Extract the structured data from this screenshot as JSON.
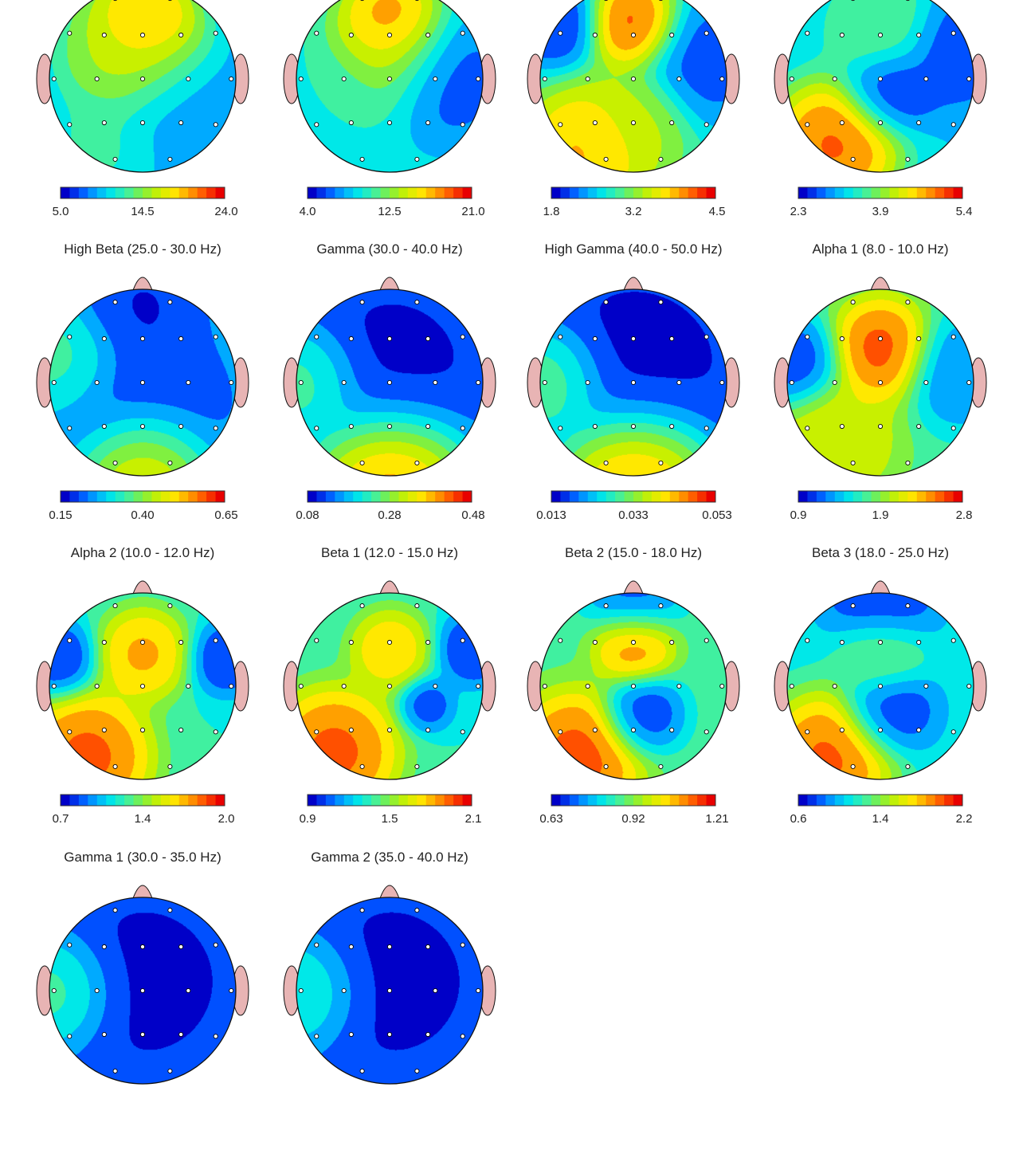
{
  "chart_data": {
    "type": "heatmap",
    "colors": {
      "scale": [
        "#0000c8",
        "#0050ff",
        "#00aaff",
        "#00e8e8",
        "#40f0a0",
        "#80f040",
        "#c8f000",
        "#ffe800",
        "#ffa000",
        "#ff5000",
        "#e80000"
      ],
      "head_outline": "#111111",
      "ear_fill": "#e8b4b4",
      "electrode": "#ffffff"
    },
    "maps": [
      {
        "title": "",
        "ticks": [
          "5.0",
          "14.5",
          "24.0"
        ],
        "blobs": [
          {
            "x": 0.0,
            "y": 0.62,
            "r": 0.28,
            "v": 0.95
          },
          {
            "x": 0.0,
            "y": 0.25,
            "r": 0.35,
            "v": 0.75
          },
          {
            "x": -0.25,
            "y": 0.3,
            "r": 0.35,
            "v": 0.55
          },
          {
            "x": 0.3,
            "y": -0.2,
            "r": 0.35,
            "v": 0.15
          },
          {
            "x": -0.45,
            "y": -0.7,
            "r": 0.3,
            "v": 0.4
          }
        ],
        "base": 0.2
      },
      {
        "title": "",
        "ticks": [
          "4.0",
          "12.5",
          "21.0"
        ],
        "blobs": [
          {
            "x": 0.0,
            "y": 0.62,
            "r": 0.26,
            "v": 0.95
          },
          {
            "x": 0.0,
            "y": 0.3,
            "r": 0.35,
            "v": 0.65
          },
          {
            "x": -0.6,
            "y": -0.3,
            "r": 0.35,
            "v": 0.35
          },
          {
            "x": 0.6,
            "y": 0.0,
            "r": 0.35,
            "v": 0.05
          }
        ],
        "base": 0.3
      },
      {
        "title": "",
        "ticks": [
          "1.8",
          "3.2",
          "4.5"
        ],
        "blobs": [
          {
            "x": 0.0,
            "y": 0.6,
            "r": 0.25,
            "v": 0.98
          },
          {
            "x": -0.5,
            "y": -0.75,
            "r": 0.35,
            "v": 0.85
          },
          {
            "x": 0.0,
            "y": -0.5,
            "r": 0.3,
            "v": 0.6
          },
          {
            "x": -0.85,
            "y": 0.6,
            "r": 0.25,
            "v": 0.0
          },
          {
            "x": 0.8,
            "y": 0.2,
            "r": 0.35,
            "v": 0.05
          }
        ],
        "base": 0.35
      },
      {
        "title": "",
        "ticks": [
          "2.3",
          "3.9",
          "5.4"
        ],
        "blobs": [
          {
            "x": -0.5,
            "y": -0.7,
            "r": 0.35,
            "v": 0.98
          },
          {
            "x": 0.1,
            "y": -0.1,
            "r": 0.25,
            "v": 0.0
          },
          {
            "x": 0.0,
            "y": 0.55,
            "r": 0.3,
            "v": 0.5
          },
          {
            "x": 0.8,
            "y": 0.3,
            "r": 0.3,
            "v": 0.05
          }
        ],
        "base": 0.25
      },
      {
        "title": "High Beta (25.0 - 30.0 Hz)",
        "ticks": [
          "0.15",
          "0.40",
          "0.65"
        ],
        "blobs": [
          {
            "x": 0.0,
            "y": -0.9,
            "r": 0.35,
            "v": 0.98
          },
          {
            "x": 0.0,
            "y": -0.3,
            "r": 0.55,
            "v": 0.0
          },
          {
            "x": 0.0,
            "y": 0.85,
            "r": 0.35,
            "v": 0.0
          },
          {
            "x": -0.8,
            "y": 0.2,
            "r": 0.3,
            "v": 0.45
          }
        ],
        "base": 0.3
      },
      {
        "title": "Gamma (30.0 - 40.0 Hz)",
        "ticks": [
          "0.08",
          "0.28",
          "0.48"
        ],
        "blobs": [
          {
            "x": 0.0,
            "y": -0.95,
            "r": 0.4,
            "v": 0.98
          },
          {
            "x": 0.0,
            "y": 0.1,
            "r": 0.55,
            "v": 0.0
          },
          {
            "x": -0.85,
            "y": 0.0,
            "r": 0.3,
            "v": 0.5
          }
        ],
        "base": 0.15
      },
      {
        "title": "High Gamma (40.0 - 50.0 Hz)",
        "ticks": [
          "0.013",
          "0.033",
          "0.053"
        ],
        "blobs": [
          {
            "x": 0.0,
            "y": -0.95,
            "r": 0.4,
            "v": 0.98
          },
          {
            "x": 0.0,
            "y": 0.1,
            "r": 0.55,
            "v": 0.0
          },
          {
            "x": -0.85,
            "y": 0.0,
            "r": 0.3,
            "v": 0.55
          }
        ],
        "base": 0.12
      },
      {
        "title": "Alpha 1 (8.0 - 10.0 Hz)",
        "ticks": [
          "0.9",
          "1.9",
          "2.8"
        ],
        "blobs": [
          {
            "x": 0.0,
            "y": 0.35,
            "r": 0.28,
            "v": 0.98
          },
          {
            "x": -0.5,
            "y": -0.6,
            "r": 0.35,
            "v": 0.7
          },
          {
            "x": -0.9,
            "y": 0.2,
            "r": 0.25,
            "v": 0.0
          },
          {
            "x": 0.85,
            "y": 0.1,
            "r": 0.3,
            "v": 0.1
          }
        ],
        "base": 0.4
      },
      {
        "title": "Alpha 2 (10.0 - 12.0 Hz)",
        "ticks": [
          "0.7",
          "1.4",
          "2.0"
        ],
        "blobs": [
          {
            "x": 0.0,
            "y": 0.35,
            "r": 0.25,
            "v": 0.85
          },
          {
            "x": -0.6,
            "y": -0.75,
            "r": 0.35,
            "v": 0.98
          },
          {
            "x": -0.9,
            "y": 0.3,
            "r": 0.2,
            "v": 0.0
          },
          {
            "x": 0.9,
            "y": 0.3,
            "r": 0.2,
            "v": 0.0
          }
        ],
        "base": 0.35
      },
      {
        "title": "Beta 1 (12.0 - 15.0 Hz)",
        "ticks": [
          "0.9",
          "1.5",
          "2.1"
        ],
        "blobs": [
          {
            "x": -0.6,
            "y": -0.7,
            "r": 0.35,
            "v": 0.98
          },
          {
            "x": 0.0,
            "y": 0.4,
            "r": 0.22,
            "v": 0.8
          },
          {
            "x": 0.9,
            "y": 0.4,
            "r": 0.2,
            "v": 0.0
          },
          {
            "x": 0.4,
            "y": -0.2,
            "r": 0.15,
            "v": 0.05
          }
        ],
        "base": 0.35
      },
      {
        "title": "Beta 2 (15.0 - 18.0 Hz)",
        "ticks": [
          "0.63",
          "0.92",
          "1.21"
        ],
        "blobs": [
          {
            "x": 0.0,
            "y": 0.45,
            "r": 0.22,
            "v": 0.9
          },
          {
            "x": 0.1,
            "y": -0.3,
            "r": 0.22,
            "v": 0.0
          },
          {
            "x": -0.6,
            "y": -0.75,
            "r": 0.35,
            "v": 0.98
          },
          {
            "x": 0.0,
            "y": 0.95,
            "r": 0.25,
            "v": 0.05
          }
        ],
        "base": 0.4
      },
      {
        "title": "Beta 3 (18.0 - 25.0 Hz)",
        "ticks": [
          "0.6",
          "1.4",
          "2.2"
        ],
        "blobs": [
          {
            "x": -0.55,
            "y": -0.75,
            "r": 0.35,
            "v": 0.98
          },
          {
            "x": 0.1,
            "y": -0.25,
            "r": 0.25,
            "v": 0.0
          },
          {
            "x": 0.0,
            "y": 0.9,
            "r": 0.3,
            "v": 0.0
          },
          {
            "x": 0.0,
            "y": 0.35,
            "r": 0.25,
            "v": 0.55
          }
        ],
        "base": 0.3
      },
      {
        "title": "Gamma 1 (30.0 - 35.0 Hz)",
        "ticks": [],
        "blobs": [
          {
            "x": 0.0,
            "y": 0.1,
            "r": 0.55,
            "v": 0.0
          },
          {
            "x": -0.85,
            "y": 0.0,
            "r": 0.3,
            "v": 0.5
          }
        ],
        "base": 0.15
      },
      {
        "title": "Gamma 2 (35.0 - 40.0 Hz)",
        "ticks": [],
        "blobs": [
          {
            "x": 0.0,
            "y": 0.1,
            "r": 0.55,
            "v": 0.0
          },
          {
            "x": -0.85,
            "y": 0.0,
            "r": 0.3,
            "v": 0.45
          }
        ],
        "base": 0.15
      }
    ],
    "electrodes": [
      [
        -0.3,
        0.88
      ],
      [
        0.3,
        0.88
      ],
      [
        -0.8,
        0.5
      ],
      [
        -0.42,
        0.48
      ],
      [
        0.0,
        0.48
      ],
      [
        0.42,
        0.48
      ],
      [
        0.8,
        0.5
      ],
      [
        -0.97,
        0.0
      ],
      [
        -0.5,
        0.0
      ],
      [
        0.0,
        0.0
      ],
      [
        0.5,
        0.0
      ],
      [
        0.97,
        0.0
      ],
      [
        -0.8,
        -0.5
      ],
      [
        -0.42,
        -0.48
      ],
      [
        0.0,
        -0.48
      ],
      [
        0.42,
        -0.48
      ],
      [
        0.8,
        -0.5
      ],
      [
        -0.3,
        -0.88
      ],
      [
        0.3,
        -0.88
      ]
    ]
  }
}
